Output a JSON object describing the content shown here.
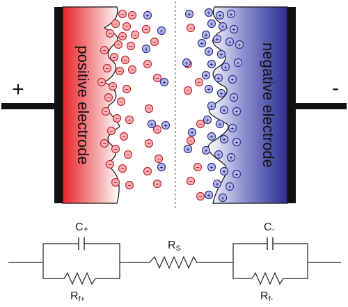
{
  "terminals": {
    "positive_symbol": "+",
    "negative_symbol": "-"
  },
  "electrodes": {
    "positive_label": "positive electrode",
    "negative_label": "negative electrode"
  },
  "ions": {
    "anion_symbol": "−",
    "cation_symbol": "+"
  },
  "circuit": {
    "c_plus_main": "C",
    "c_plus_sub": "+",
    "c_minus_main": "C",
    "c_minus_sub": "-",
    "rs_main": "R",
    "rs_sub": "S",
    "rf_plus_main": "R",
    "rf_plus_sub": "f+",
    "rf_minus_main": "R",
    "rf_minus_sub": "f-"
  },
  "colors": {
    "positive_electrode": "#e8222b",
    "negative_electrode": "#2b2f8f",
    "anion_fill": "#f2b3b6",
    "anion_stroke": "#c8262c",
    "cation_fill": "#b9bde6",
    "cation_stroke": "#2b2f8f",
    "current_collector": "#111111"
  }
}
